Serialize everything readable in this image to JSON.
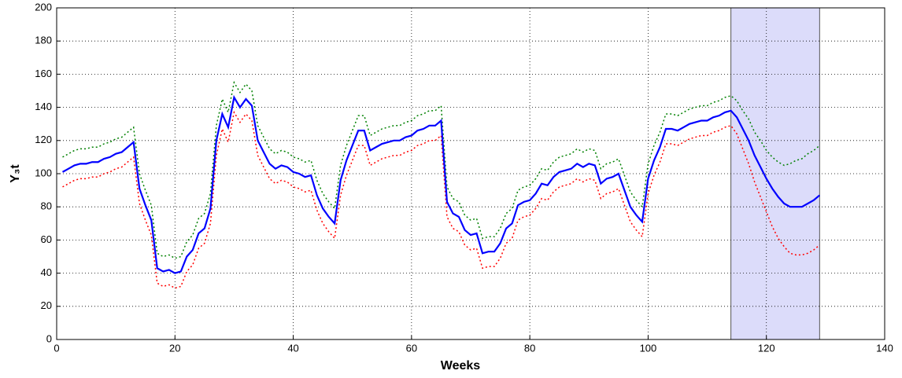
{
  "chart_data": {
    "type": "line",
    "xlabel": "Weeks",
    "ylabel": "Y₃t",
    "x": [
      1,
      2,
      3,
      4,
      5,
      6,
      7,
      8,
      9,
      10,
      11,
      12,
      13,
      14,
      15,
      16,
      17,
      18,
      19,
      20,
      21,
      22,
      23,
      24,
      25,
      26,
      27,
      28,
      29,
      30,
      31,
      32,
      33,
      34,
      35,
      36,
      37,
      38,
      39,
      40,
      41,
      42,
      43,
      44,
      45,
      46,
      47,
      48,
      49,
      50,
      51,
      52,
      53,
      54,
      55,
      56,
      57,
      58,
      59,
      60,
      61,
      62,
      63,
      64,
      65,
      66,
      67,
      68,
      69,
      70,
      71,
      72,
      73,
      74,
      75,
      76,
      77,
      78,
      79,
      80,
      81,
      82,
      83,
      84,
      85,
      86,
      87,
      88,
      89,
      90,
      91,
      92,
      93,
      94,
      95,
      96,
      97,
      98,
      99,
      100,
      101,
      102,
      103,
      104,
      105,
      106,
      107,
      108,
      109,
      110,
      111,
      112,
      113,
      114,
      115,
      116,
      117,
      118,
      119,
      120,
      121,
      122,
      123,
      124,
      125,
      126,
      127,
      128,
      129
    ],
    "series": [
      {
        "color": "#008000",
        "dash": "dotted",
        "values": [
          110,
          112,
          114,
          115,
          115,
          116,
          116,
          118,
          119,
          121,
          122,
          125,
          128,
          100,
          90,
          81,
          52,
          50,
          51,
          49,
          50,
          59,
          63,
          73,
          76,
          88,
          129,
          145,
          137,
          155,
          149,
          154,
          150,
          129,
          122,
          115,
          112,
          114,
          113,
          110,
          109,
          107,
          108,
          96,
          88,
          83,
          79,
          105,
          117,
          126,
          135,
          135,
          123,
          125,
          127,
          128,
          129,
          129,
          131,
          132,
          135,
          136,
          138,
          138,
          141,
          92,
          85,
          83,
          75,
          72,
          73,
          61,
          62,
          62,
          67,
          76,
          79,
          90,
          92,
          93,
          97,
          103,
          102,
          107,
          110,
          111,
          112,
          115,
          113,
          115,
          114,
          103,
          106,
          107,
          109,
          99,
          89,
          84,
          80,
          106,
          117,
          125,
          136,
          136,
          135,
          137,
          139,
          140,
          141,
          141,
          143,
          144,
          146,
          147,
          144,
          138,
          133,
          125,
          120,
          114,
          110,
          107,
          105,
          106,
          108,
          109,
          112,
          114,
          117
        ]
      },
      {
        "color": "#ff0000",
        "dash": "dotted",
        "values": [
          92,
          94,
          96,
          97,
          97,
          98,
          98,
          100,
          101,
          103,
          104,
          107,
          110,
          82,
          72,
          63,
          34,
          32,
          33,
          31,
          32,
          41,
          45,
          55,
          58,
          70,
          111,
          127,
          119,
          137,
          131,
          136,
          132,
          111,
          104,
          97,
          94,
          96,
          95,
          92,
          91,
          89,
          90,
          78,
          70,
          65,
          61,
          87,
          99,
          108,
          117,
          117,
          105,
          107,
          109,
          110,
          111,
          111,
          113,
          114,
          117,
          118,
          120,
          120,
          123,
          74,
          67,
          65,
          57,
          54,
          55,
          43,
          44,
          44,
          49,
          58,
          61,
          72,
          74,
          75,
          79,
          85,
          84,
          89,
          92,
          93,
          94,
          97,
          95,
          97,
          96,
          85,
          88,
          89,
          91,
          81,
          71,
          66,
          62,
          88,
          99,
          107,
          118,
          118,
          117,
          119,
          121,
          122,
          123,
          123,
          125,
          126,
          128,
          129,
          124,
          115,
          106,
          95,
          86,
          77,
          68,
          61,
          56,
          52,
          51,
          51,
          52,
          54,
          57
        ]
      },
      {
        "color": "#0000ff",
        "dash": "solid",
        "values": [
          101,
          103,
          105,
          106,
          106,
          107,
          107,
          109,
          110,
          112,
          113,
          116,
          119,
          91,
          81,
          72,
          43,
          41,
          42,
          40,
          41,
          50,
          54,
          64,
          67,
          79,
          120,
          136,
          128,
          146,
          140,
          145,
          141,
          120,
          113,
          106,
          103,
          105,
          104,
          101,
          100,
          98,
          99,
          87,
          79,
          74,
          70,
          96,
          108,
          117,
          126,
          126,
          114,
          116,
          118,
          119,
          120,
          120,
          122,
          123,
          126,
          127,
          129,
          129,
          132,
          83,
          76,
          74,
          66,
          63,
          64,
          52,
          53,
          53,
          58,
          67,
          70,
          81,
          83,
          84,
          88,
          94,
          93,
          98,
          101,
          102,
          103,
          106,
          104,
          106,
          105,
          94,
          97,
          98,
          100,
          90,
          80,
          75,
          71,
          97,
          108,
          116,
          127,
          127,
          126,
          128,
          130,
          131,
          132,
          132,
          134,
          135,
          137,
          138,
          134,
          127,
          120,
          111,
          104,
          97,
          91,
          86,
          82,
          80,
          80,
          80,
          82,
          84,
          87
        ]
      }
    ],
    "shaded_region": [
      114,
      129
    ],
    "shaded_color": "#dcdcfa",
    "xlim": [
      0,
      140
    ],
    "xticks": [
      0,
      20,
      40,
      60,
      80,
      100,
      120,
      140
    ],
    "ylim": [
      0,
      200
    ],
    "yticks": [
      0,
      20,
      40,
      60,
      80,
      100,
      120,
      140,
      160,
      180,
      200
    ],
    "grid": true
  }
}
